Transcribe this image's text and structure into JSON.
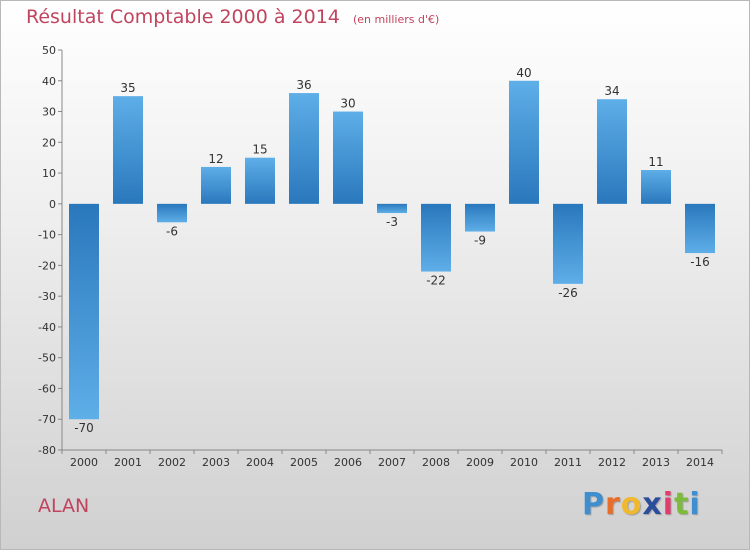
{
  "title": "Résultat Comptable 2000 à 2014",
  "unit": "(en milliers d'€)",
  "commune": "ALAN",
  "logo": {
    "letters": [
      "P",
      "r",
      "o",
      "x",
      "i",
      "t",
      "i"
    ],
    "colors": [
      "#3f8fd0",
      "#e86e2c",
      "#f0b82e",
      "#2a4d9c",
      "#e23b6e",
      "#7dbb3c",
      "#3f8fd0"
    ]
  },
  "colors": {
    "bar_top": "#2a78bc",
    "bar_bottom": "#5eaee8",
    "title": "#c1445e"
  },
  "chart_data": {
    "type": "bar",
    "categories": [
      "2000",
      "2001",
      "2002",
      "2003",
      "2004",
      "2005",
      "2006",
      "2007",
      "2008",
      "2009",
      "2010",
      "2011",
      "2012",
      "2013",
      "2014"
    ],
    "values": [
      -70,
      35,
      -6,
      12,
      15,
      36,
      30,
      -3,
      -22,
      -9,
      40,
      -26,
      34,
      11,
      -16
    ],
    "value_labels": [
      "-70",
      "35",
      "-6",
      "12",
      "15",
      "36",
      "30",
      "-3",
      "-22",
      "-9",
      "40",
      "-26",
      "34",
      "11",
      "-16"
    ],
    "ylim": [
      -80,
      50
    ],
    "yticks": [
      50,
      40,
      30,
      20,
      10,
      0,
      -10,
      -20,
      -30,
      -40,
      -50,
      -60,
      -70,
      -80
    ],
    "ytick_labels": [
      "50",
      "40",
      "30",
      "20",
      "10",
      "0",
      "-10",
      "-20",
      "-30",
      "-40",
      "-50",
      "-60",
      "-70",
      "-80"
    ],
    "grid": false,
    "legend": "none"
  }
}
